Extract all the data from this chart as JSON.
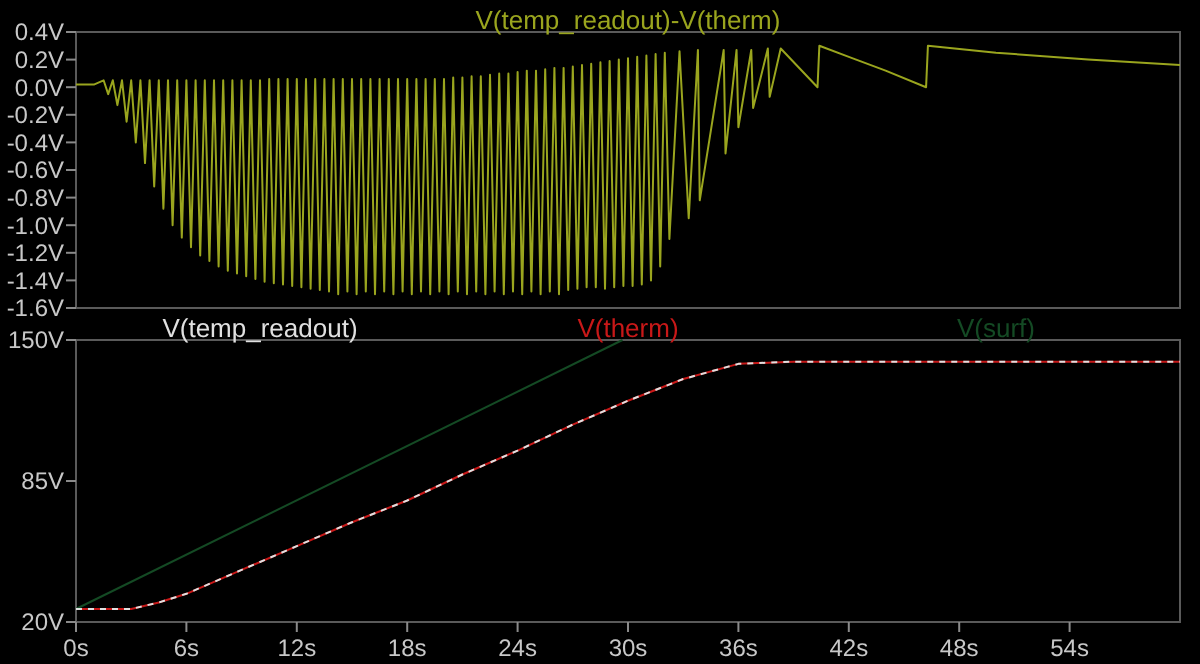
{
  "chart_data": [
    {
      "type": "line",
      "legend": "top",
      "tick_labels": "y",
      "xlim": [
        0,
        60
      ],
      "ylim": [
        -1.6,
        0.4
      ],
      "yticks": [
        {
          "value": 0.4,
          "label": "0.4V"
        },
        {
          "value": 0.2,
          "label": "0.2V"
        },
        {
          "value": 0,
          "label": "0.0V"
        },
        {
          "value": -0.2,
          "label": "-0.2V"
        },
        {
          "value": -0.4,
          "label": "-0.4V"
        },
        {
          "value": -0.6,
          "label": "-0.6V"
        },
        {
          "value": -0.8,
          "label": "-0.8V"
        },
        {
          "value": -1,
          "label": "-1.0V"
        },
        {
          "value": -1.2,
          "label": "-1.2V"
        },
        {
          "value": -1.4,
          "label": "-1.4V"
        },
        {
          "value": -1.6,
          "label": "-1.6V"
        }
      ],
      "series": [
        {
          "name": "V(temp_readout)-V(therm)",
          "color": "#9aa51e",
          "x": [
            0,
            1,
            1.5,
            1.75,
            2,
            2.25,
            2.5,
            2.75,
            3,
            3.25,
            3.5,
            3.75,
            4,
            4.25,
            4.5,
            4.75,
            5,
            5.25,
            5.5,
            5.75,
            6,
            6.25,
            6.5,
            6.75,
            7,
            7.25,
            7.5,
            7.75,
            8,
            8.25,
            8.5,
            8.75,
            9,
            9.25,
            9.5,
            9.75,
            10,
            10.25,
            10.5,
            10.75,
            11,
            11.25,
            11.5,
            11.75,
            12,
            12.25,
            12.5,
            12.75,
            13,
            13.25,
            13.5,
            13.75,
            14,
            14.25,
            14.5,
            14.75,
            15,
            15.25,
            15.5,
            15.75,
            16,
            16.25,
            16.5,
            16.75,
            17,
            17.25,
            17.5,
            17.75,
            18,
            18.25,
            18.5,
            18.75,
            19,
            19.25,
            19.5,
            19.75,
            20,
            20.25,
            20.5,
            20.75,
            21,
            21.25,
            21.5,
            21.75,
            22,
            22.25,
            22.5,
            22.75,
            23,
            23.25,
            23.5,
            23.75,
            24,
            24.25,
            24.5,
            24.75,
            25,
            25.25,
            25.5,
            25.75,
            26,
            26.25,
            26.5,
            26.75,
            27,
            27.25,
            27.5,
            27.75,
            28,
            28.25,
            28.5,
            28.75,
            29,
            29.25,
            29.5,
            29.75,
            30,
            30.25,
            30.5,
            30.75,
            31,
            31.25,
            31.5,
            31.75,
            32,
            32.25,
            32.8,
            33.3,
            33.8,
            33.9,
            35.2,
            35.3,
            35.9,
            36,
            36.7,
            36.8,
            37.6,
            37.7,
            38.3,
            40.3,
            40.4,
            42,
            44,
            46.2,
            46.3,
            50,
            55,
            60
          ],
          "values": [
            0.02,
            0.02,
            0.05,
            -0.05,
            0.05,
            -0.13,
            0.05,
            -0.25,
            0.05,
            -0.4,
            0.05,
            -0.55,
            0.05,
            -0.72,
            0.05,
            -0.88,
            0.05,
            -1,
            0.05,
            -1.09,
            0.05,
            -1.16,
            0.05,
            -1.22,
            0.05,
            -1.26,
            0.05,
            -1.3,
            0.05,
            -1.33,
            0.05,
            -1.35,
            0.05,
            -1.37,
            0.05,
            -1.39,
            0.05,
            -1.41,
            0.06,
            -1.42,
            0.06,
            -1.43,
            0.06,
            -1.44,
            0.06,
            -1.45,
            0.06,
            -1.46,
            0.06,
            -1.47,
            0.06,
            -1.48,
            0.06,
            -1.5,
            0.06,
            -1.48,
            0.06,
            -1.5,
            0.06,
            -1.48,
            0.06,
            -1.5,
            0.06,
            -1.48,
            0.06,
            -1.5,
            0.06,
            -1.48,
            0.06,
            -1.5,
            0.06,
            -1.48,
            0.06,
            -1.5,
            0.06,
            -1.48,
            0.06,
            -1.5,
            0.07,
            -1.48,
            0.07,
            -1.5,
            0.08,
            -1.48,
            0.08,
            -1.5,
            0.09,
            -1.48,
            0.1,
            -1.5,
            0.1,
            -1.48,
            0.11,
            -1.5,
            0.12,
            -1.48,
            0.12,
            -1.5,
            0.13,
            -1.48,
            0.14,
            -1.5,
            0.14,
            -1.47,
            0.15,
            -1.46,
            0.16,
            -1.45,
            0.17,
            -1.45,
            0.18,
            -1.46,
            0.19,
            -1.45,
            0.2,
            -1.44,
            0.21,
            -1.44,
            0.22,
            -1.43,
            0.23,
            -1.4,
            0.24,
            -1.3,
            0.25,
            -1.1,
            0.26,
            -0.95,
            0.27,
            -0.82,
            0.27,
            -0.48,
            0.27,
            -0.29,
            0.27,
            -0.15,
            0.28,
            -0.07,
            0.28,
            0,
            0.3,
            0.22,
            0.12,
            0,
            0.3,
            0.25,
            0.2,
            0.16
          ]
        }
      ]
    },
    {
      "type": "line",
      "legend": "top",
      "xlim": [
        0,
        60
      ],
      "ylim": [
        20,
        150
      ],
      "xticks": [
        {
          "value": 0,
          "label": "0s"
        },
        {
          "value": 6,
          "label": "6s"
        },
        {
          "value": 12,
          "label": "12s"
        },
        {
          "value": 18,
          "label": "18s"
        },
        {
          "value": 24,
          "label": "24s"
        },
        {
          "value": 30,
          "label": "30s"
        },
        {
          "value": 36,
          "label": "36s"
        },
        {
          "value": 42,
          "label": "42s"
        },
        {
          "value": 48,
          "label": "48s"
        },
        {
          "value": 54,
          "label": "54s"
        }
      ],
      "yticks": [
        {
          "value": 20,
          "label": "20V"
        },
        {
          "value": 85,
          "label": "85V"
        },
        {
          "value": 150,
          "label": "150V"
        }
      ],
      "series": [
        {
          "name": "V(temp_readout)",
          "color": "#e0e0e0",
          "line_style": "dashed",
          "x": [
            0,
            1.5,
            3,
            4.5,
            6,
            9,
            12,
            15,
            18,
            21,
            24,
            27,
            30,
            33,
            36,
            39,
            45,
            60
          ],
          "values": [
            26,
            26,
            26,
            29,
            33,
            44,
            55,
            66,
            76,
            88,
            99,
            111,
            122,
            132,
            139,
            140,
            140,
            140
          ]
        },
        {
          "name": "V(therm)",
          "color": "#c81818",
          "x": [
            0,
            1.5,
            3,
            4.5,
            6,
            9,
            12,
            15,
            18,
            21,
            24,
            27,
            30,
            33,
            36,
            39,
            45,
            60
          ],
          "values": [
            26,
            26,
            26,
            29,
            33,
            44,
            55,
            66,
            76,
            88,
            99,
            111,
            122,
            132,
            139,
            140,
            140,
            140
          ]
        },
        {
          "name": "V(surf)",
          "color": "#144a24",
          "x": [
            0,
            29.7
          ],
          "values": [
            26,
            150
          ]
        }
      ]
    }
  ]
}
